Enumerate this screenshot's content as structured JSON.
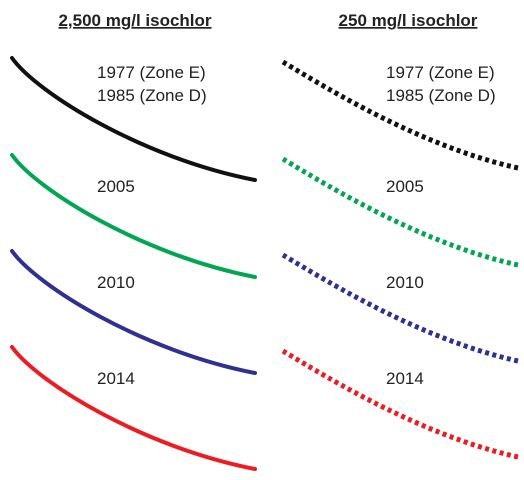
{
  "columns": [
    {
      "title": "2,500 mg/l isochlor",
      "line": "solid"
    },
    {
      "title": "250 mg/l isochlor",
      "line": "dotted"
    }
  ],
  "rows": [
    {
      "labels": [
        "1977 (Zone E)",
        "1985 (Zone D)"
      ],
      "color": "#111111"
    },
    {
      "labels": [
        "2005"
      ],
      "color": "#00a651"
    },
    {
      "labels": [
        "2010"
      ],
      "color": "#2e3192"
    },
    {
      "labels": [
        "2014"
      ],
      "color": "#ed1c24"
    }
  ]
}
